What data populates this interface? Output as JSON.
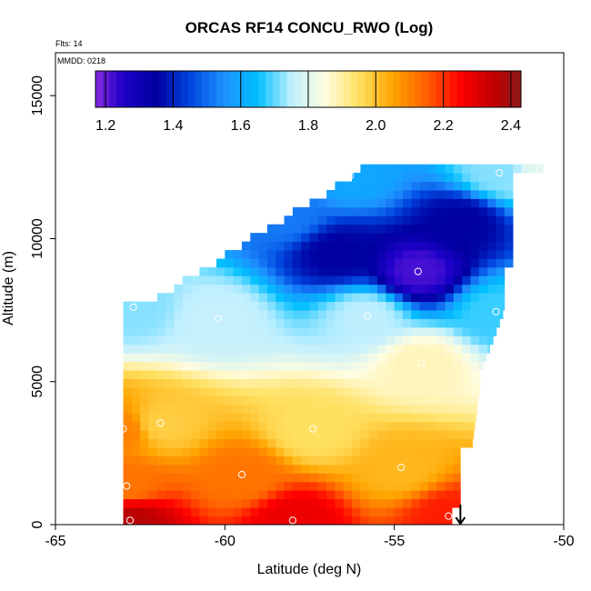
{
  "chart_data": {
    "type": "heatmap",
    "title": "ORCAS RF14 CONCU_RWO (Log)",
    "xlabel": "Latitude (deg N)",
    "ylabel": "Altitude (m)",
    "xlim": [
      -65,
      -50
    ],
    "ylim": [
      0,
      16500
    ],
    "x_ticks": [
      -65,
      -60,
      -55,
      -50
    ],
    "y_ticks": [
      0,
      5000,
      10000,
      15000
    ],
    "notes": [
      "Flts: 14",
      "MMDD: 0218"
    ],
    "colorbar": {
      "range": [
        1.17,
        2.43
      ],
      "ticks": [
        "1.2",
        "1.4",
        "1.6",
        "1.8",
        "2.0",
        "2.2",
        "2.4"
      ],
      "tick_values": [
        1.2,
        1.4,
        1.6,
        1.8,
        2.0,
        2.2,
        2.4
      ],
      "stops": [
        {
          "v": 1.17,
          "c": "#8a2be2"
        },
        {
          "v": 1.25,
          "c": "#1d00c8"
        },
        {
          "v": 1.35,
          "c": "#0000a0"
        },
        {
          "v": 1.45,
          "c": "#0044dd"
        },
        {
          "v": 1.55,
          "c": "#1e90ff"
        },
        {
          "v": 1.65,
          "c": "#00bfff"
        },
        {
          "v": 1.75,
          "c": "#bfefff"
        },
        {
          "v": 1.85,
          "c": "#fffde0"
        },
        {
          "v": 1.95,
          "c": "#ffe060"
        },
        {
          "v": 2.05,
          "c": "#ffa500"
        },
        {
          "v": 2.15,
          "c": "#ff6000"
        },
        {
          "v": 2.25,
          "c": "#ff0000"
        },
        {
          "v": 2.35,
          "c": "#c00000"
        },
        {
          "v": 2.43,
          "c": "#8b1a1a"
        }
      ]
    },
    "grid_params": {
      "lat_start": -63.0,
      "lat_step": 0.25,
      "alt_start": 0,
      "alt_step": 300
    },
    "grid_lat_ranges": [
      [
        -63.0,
        -53.3
      ],
      [
        -63.0,
        -53.3
      ],
      [
        -63.0,
        -53.3
      ],
      [
        -63.0,
        -53.3
      ],
      [
        -63.0,
        -53.3
      ],
      [
        -63.0,
        -53.3
      ],
      [
        -63.0,
        -53.05
      ],
      [
        -63.0,
        -53.05
      ],
      [
        -63.0,
        -53.05
      ],
      [
        -63.0,
        -53.05
      ],
      [
        -63.0,
        -53.0
      ],
      [
        -63.0,
        -53.0
      ],
      [
        -63.0,
        -53.05
      ],
      [
        -63.0,
        -53.05
      ],
      [
        -63.0,
        -52.95
      ],
      [
        -63.0,
        -52.95
      ],
      [
        -63.0,
        -52.8
      ],
      [
        -63.0,
        -52.8
      ],
      [
        -63.0,
        -52.7
      ],
      [
        -63.0,
        -52.7
      ],
      [
        -63.0,
        -52.6
      ],
      [
        -63.0,
        -52.6
      ],
      [
        -63.0,
        -52.4
      ],
      [
        -63.0,
        -52.4
      ],
      [
        -63.0,
        -52.3
      ],
      [
        -63.0,
        -52.3
      ],
      [
        -63.0,
        -52.1
      ],
      [
        -63.0,
        -52.1
      ],
      [
        -63.0,
        -51.9
      ],
      [
        -63.0,
        -51.9
      ],
      [
        -62.9,
        -51.75
      ],
      [
        -62.9,
        -51.75
      ],
      [
        -62.9,
        -51.75
      ],
      [
        -62.9,
        -51.8
      ],
      [
        -62.9,
        -51.8
      ],
      [
        -62.9,
        -51.8
      ],
      [
        -62.9,
        -51.8
      ],
      [
        -62.9,
        -51.8
      ],
      [
        -62.9,
        -51.8
      ],
      [
        -62.9,
        -51.8
      ],
      [
        -62.9,
        -51.8
      ],
      [
        -62.9,
        -51.8
      ],
      [
        -62.9,
        -51.8
      ],
      [
        -62.9,
        -51.8
      ],
      [
        -62.9,
        -51.8
      ],
      [
        -62.9,
        -51.8
      ],
      [
        -62.9,
        -51.8
      ],
      [
        -62.9,
        -51.8
      ],
      [
        -62.9,
        -51.8
      ],
      [
        -62.9,
        -51.8
      ],
      [
        -62.9,
        -51.8
      ],
      [
        -62.9,
        -51.5
      ],
      [
        -62.9,
        -51.5
      ],
      [
        -62.9,
        -51.5
      ],
      [
        -62.9,
        -51.5
      ],
      [
        -62.9,
        -51.5
      ],
      [
        -62.9,
        -51.5
      ],
      [
        -62.9,
        -51.5
      ],
      [
        -62.9,
        -51.5
      ],
      [
        -62.9,
        -51.5
      ],
      [
        -62.9,
        -51.5
      ],
      [
        -62.9,
        -51.5
      ],
      [
        -62.9,
        -51.5
      ],
      [
        -62.9,
        -51.5
      ],
      [
        -62.9,
        -51.5
      ],
      [
        -62.9,
        -51.5
      ],
      [
        -62.9,
        -51.5
      ],
      [
        -62.9,
        -51.5
      ],
      [
        -62.9,
        -51.5
      ],
      [
        -62.9,
        -51.5
      ],
      [
        -62.9,
        -51.5
      ],
      [
        -62.9,
        -51.5
      ],
      [
        -62.9,
        -51.5
      ],
      [
        -62.9,
        -51.5
      ],
      [
        -62.9,
        -51.5
      ],
      [
        -62.9,
        -51.5
      ],
      [
        -62.9,
        -51.5
      ],
      [
        -62.9,
        -51.5
      ],
      [
        -62.9,
        -51.5
      ],
      [
        -62.9,
        -51.5
      ],
      [
        -62.9,
        -51.5
      ],
      [
        -62.9,
        -51.5
      ],
      [
        -62.9,
        -51.5
      ],
      [
        -62.9,
        -51.5
      ],
      [
        -62.9,
        -51.5
      ],
      [
        -62.9,
        -51.5
      ],
      [
        -62.9,
        -51.5
      ],
      [
        -62.9,
        -51.5
      ],
      [
        -62.9,
        -51.5
      ],
      [
        -62.9,
        -51.5
      ],
      [
        -62.9,
        -51.5
      ],
      [
        -62.9,
        -51.5
      ],
      [
        -62.9,
        -51.5
      ]
    ],
    "data_points": [
      {
        "lat": -62.8,
        "alt": 150,
        "v": 2.36
      },
      {
        "lat": -58.0,
        "alt": 150,
        "v": 2.28
      },
      {
        "lat": -53.4,
        "alt": 300,
        "v": 2.22
      },
      {
        "lat": -63.0,
        "alt": 3300,
        "v": 2.1
      },
      {
        "lat": -62.9,
        "alt": 1400,
        "v": 2.12
      },
      {
        "lat": -61.9,
        "alt": 3500,
        "v": 1.98
      },
      {
        "lat": -59.5,
        "alt": 1700,
        "v": 2.12
      },
      {
        "lat": -57.4,
        "alt": 3300,
        "v": 1.95
      },
      {
        "lat": -54.8,
        "alt": 2000,
        "v": 2.02
      },
      {
        "lat": -54.2,
        "alt": 5600,
        "v": 1.88
      },
      {
        "lat": -60.2,
        "alt": 7200,
        "v": 1.76
      },
      {
        "lat": -62.7,
        "alt": 7600,
        "v": 1.72
      },
      {
        "lat": -55.8,
        "alt": 7300,
        "v": 1.75
      },
      {
        "lat": -52.0,
        "alt": 7450,
        "v": 1.68
      },
      {
        "lat": -54.3,
        "alt": 8850,
        "v": 1.22
      },
      {
        "lat": -56.3,
        "alt": 12200,
        "v": 1.6
      },
      {
        "lat": -51.9,
        "alt": 12300,
        "v": 1.72
      },
      {
        "lat": -50.7,
        "alt": 12400,
        "v": 1.8
      },
      {
        "lat": -58.2,
        "alt": 10800,
        "v": 1.52
      },
      {
        "lat": -53.0,
        "alt": 10600,
        "v": 1.35
      },
      {
        "lat": -56.7,
        "alt": 9500,
        "v": 1.35
      }
    ],
    "marker_points": [
      {
        "lat": -62.8,
        "alt": 150
      },
      {
        "lat": -58.0,
        "alt": 150
      },
      {
        "lat": -53.4,
        "alt": 300
      },
      {
        "lat": -63.0,
        "alt": 3350
      },
      {
        "lat": -62.9,
        "alt": 1350
      },
      {
        "lat": -61.9,
        "alt": 3550
      },
      {
        "lat": -59.5,
        "alt": 1750
      },
      {
        "lat": -57.4,
        "alt": 3350
      },
      {
        "lat": -54.8,
        "alt": 2000
      },
      {
        "lat": -54.2,
        "alt": 5650
      },
      {
        "lat": -60.2,
        "alt": 7200
      },
      {
        "lat": -62.7,
        "alt": 7600
      },
      {
        "lat": -55.8,
        "alt": 7300
      },
      {
        "lat": -52.0,
        "alt": 7450
      },
      {
        "lat": -54.3,
        "alt": 8850
      },
      {
        "lat": -56.3,
        "alt": 12200
      },
      {
        "lat": -51.9,
        "alt": 12300
      },
      {
        "lat": -50.7,
        "alt": 12400
      }
    ],
    "arrow": {
      "lat": -53.05,
      "alt_top": 700,
      "alt_bottom": 0,
      "direction": "down"
    }
  }
}
